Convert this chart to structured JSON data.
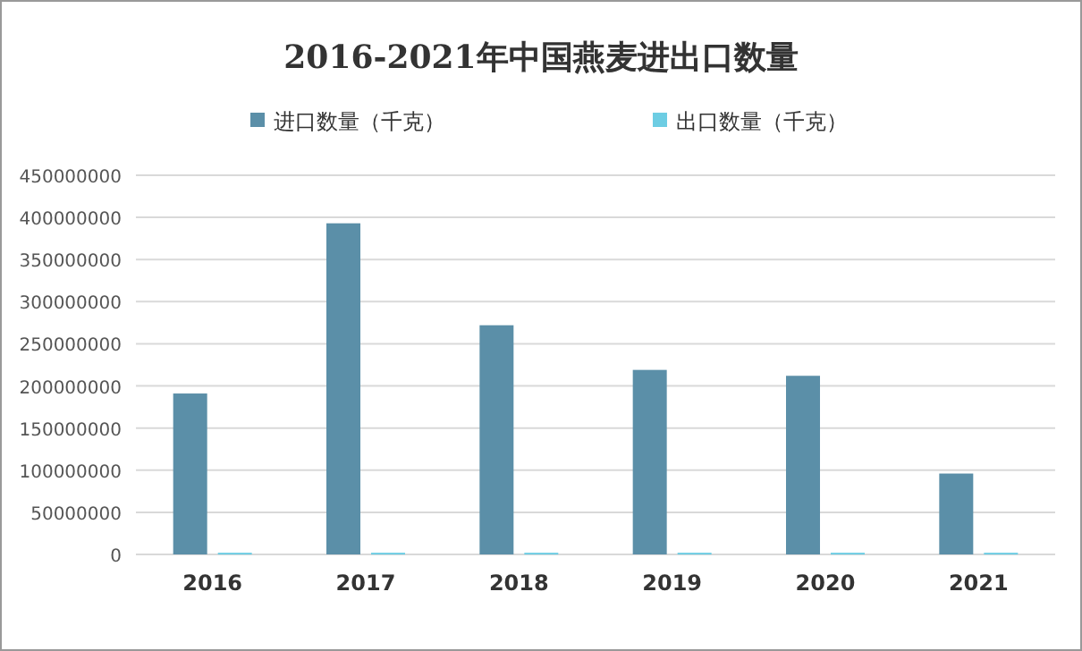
{
  "chart_data": {
    "type": "bar",
    "title": "2016-2021年中国燕麦进出口数量",
    "categories": [
      "2016",
      "2017",
      "2018",
      "2019",
      "2020",
      "2021"
    ],
    "series": [
      {
        "name": "进口数量（千克）",
        "color": "#5b8fa8",
        "values": [
          191000000,
          393000000,
          272000000,
          219000000,
          212000000,
          96000000
        ]
      },
      {
        "name": "出口数量（千克）",
        "color": "#6dcde3",
        "values": [
          2000000,
          2000000,
          2000000,
          2000000,
          2000000,
          2000000
        ]
      }
    ],
    "ylim": [
      0,
      450000000
    ],
    "yticks": [
      0,
      50000000,
      100000000,
      150000000,
      200000000,
      250000000,
      300000000,
      350000000,
      400000000,
      450000000
    ],
    "grid": "y",
    "legend": "top"
  }
}
